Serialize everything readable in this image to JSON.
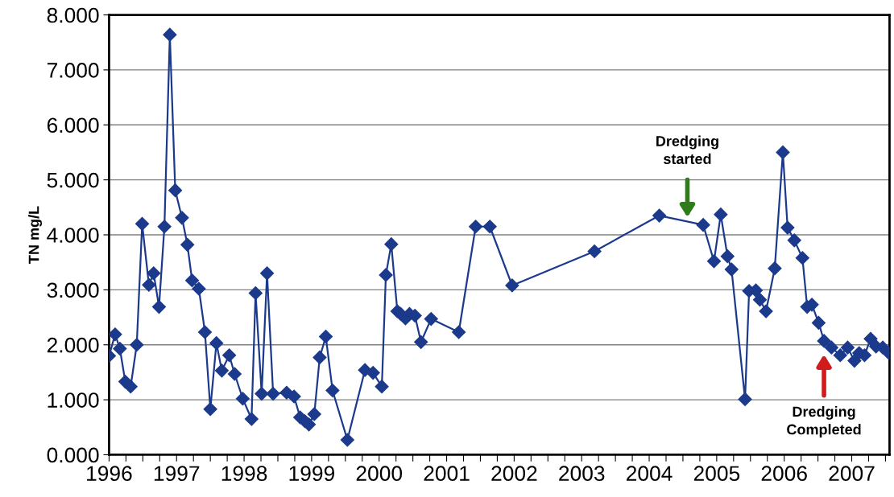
{
  "chart_data": {
    "type": "line",
    "ylabel": "TN mg/L",
    "marker": "diamond",
    "line_style": "solid",
    "grid": "y",
    "legend": false,
    "x": [
      1996.0,
      1996.09,
      1996.16,
      1996.24,
      1996.32,
      1996.41,
      1996.49,
      1996.59,
      1996.66,
      1996.74,
      1996.82,
      1996.9,
      1996.98,
      1997.08,
      1997.16,
      1997.23,
      1997.33,
      1997.42,
      1997.5,
      1997.59,
      1997.67,
      1997.78,
      1997.86,
      1997.98,
      1998.11,
      1998.17,
      1998.26,
      1998.34,
      1998.43,
      1998.63,
      1998.74,
      1998.83,
      1998.9,
      1998.96,
      1999.04,
      1999.12,
      1999.21,
      1999.31,
      1999.53,
      1999.79,
      1999.91,
      2000.04,
      2000.1,
      2000.18,
      2000.27,
      2000.32,
      2000.39,
      2000.45,
      2000.53,
      2000.62,
      2000.77,
      2001.18,
      2001.43,
      2001.64,
      2001.97,
      2003.19,
      2004.15,
      2004.8,
      2004.96,
      2005.06,
      2005.16,
      2005.22,
      2005.42,
      2005.48,
      2005.58,
      2005.64,
      2005.73,
      2005.86,
      2005.98,
      2006.05,
      2006.15,
      2006.27,
      2006.34,
      2006.41,
      2006.51,
      2006.59,
      2006.7,
      2006.83,
      2006.94,
      2007.04,
      2007.11,
      2007.19,
      2007.28,
      2007.36,
      2007.46,
      2007.55
    ],
    "series": [
      {
        "color": "#1c3a8c",
        "values": [
          1.8,
          2.19,
          1.93,
          1.33,
          1.24,
          2.0,
          4.2,
          3.09,
          3.3,
          2.69,
          4.15,
          7.64,
          4.81,
          4.31,
          3.82,
          3.17,
          3.02,
          2.23,
          0.83,
          2.03,
          1.53,
          1.81,
          1.47,
          1.02,
          0.65,
          2.94,
          1.11,
          3.3,
          1.11,
          1.13,
          1.06,
          0.68,
          0.61,
          0.55,
          0.74,
          1.77,
          2.15,
          1.17,
          0.27,
          1.54,
          1.49,
          1.24,
          3.27,
          3.83,
          2.61,
          2.56,
          2.48,
          2.56,
          2.53,
          2.05,
          2.47,
          2.23,
          4.15,
          4.15,
          3.08,
          3.7,
          4.35,
          4.18,
          3.52,
          4.37,
          3.61,
          3.37,
          1.01,
          2.98,
          2.99,
          2.82,
          2.61,
          3.39,
          5.5,
          4.13,
          3.9,
          3.58,
          2.69,
          2.73,
          2.4,
          2.07,
          1.95,
          1.81,
          1.95,
          1.71,
          1.85,
          1.81,
          2.11,
          1.97,
          1.95,
          1.85
        ]
      }
    ],
    "xlim": [
      1996.0,
      2007.56
    ],
    "xticks": [
      1996,
      {
        "value": 1996.25,
        "label": null
      },
      {
        "value": 1996.5,
        "label": null
      },
      {
        "value": 1996.75,
        "label": null
      },
      1997,
      {
        "value": 1997.25,
        "label": null
      },
      {
        "value": 1997.5,
        "label": null
      },
      {
        "value": 1997.75,
        "label": null
      },
      1998,
      {
        "value": 1998.25,
        "label": null
      },
      {
        "value": 1998.5,
        "label": null
      },
      {
        "value": 1998.75,
        "label": null
      },
      1999,
      {
        "value": 1999.25,
        "label": null
      },
      {
        "value": 1999.5,
        "label": null
      },
      {
        "value": 1999.75,
        "label": null
      },
      2000,
      {
        "value": 2000.25,
        "label": null
      },
      {
        "value": 2000.5,
        "label": null
      },
      {
        "value": 2000.75,
        "label": null
      },
      2001,
      {
        "value": 2001.25,
        "label": null
      },
      {
        "value": 2001.5,
        "label": null
      },
      {
        "value": 2001.75,
        "label": null
      },
      2002,
      {
        "value": 2002.25,
        "label": null
      },
      {
        "value": 2002.5,
        "label": null
      },
      {
        "value": 2002.75,
        "label": null
      },
      2003,
      {
        "value": 2003.25,
        "label": null
      },
      {
        "value": 2003.5,
        "label": null
      },
      {
        "value": 2003.75,
        "label": null
      },
      2004,
      {
        "value": 2004.25,
        "label": null
      },
      {
        "value": 2004.5,
        "label": null
      },
      {
        "value": 2004.75,
        "label": null
      },
      2005,
      {
        "value": 2005.25,
        "label": null
      },
      {
        "value": 2005.5,
        "label": null
      },
      {
        "value": 2005.75,
        "label": null
      },
      2006,
      {
        "value": 2006.25,
        "label": null
      },
      {
        "value": 2006.5,
        "label": null
      },
      {
        "value": 2006.75,
        "label": null
      },
      2007,
      {
        "value": 2007.25,
        "label": null
      },
      {
        "value": 2007.5,
        "label": null
      }
    ],
    "ylim": [
      0,
      8
    ],
    "yticks": [
      {
        "value": 0,
        "label": "0.000"
      },
      {
        "value": 1,
        "label": "1.000"
      },
      {
        "value": 2,
        "label": "2.000"
      },
      {
        "value": 3,
        "label": "3.000"
      },
      {
        "value": 4,
        "label": "4.000"
      },
      {
        "value": 5,
        "label": "5.000"
      },
      {
        "value": 6,
        "label": "6.000"
      },
      {
        "value": 7,
        "label": "7.000"
      },
      {
        "value": 8,
        "label": "8.000"
      }
    ],
    "annotations": [
      "Dredging\nstarted",
      "Dredging\nCompleted"
    ]
  }
}
